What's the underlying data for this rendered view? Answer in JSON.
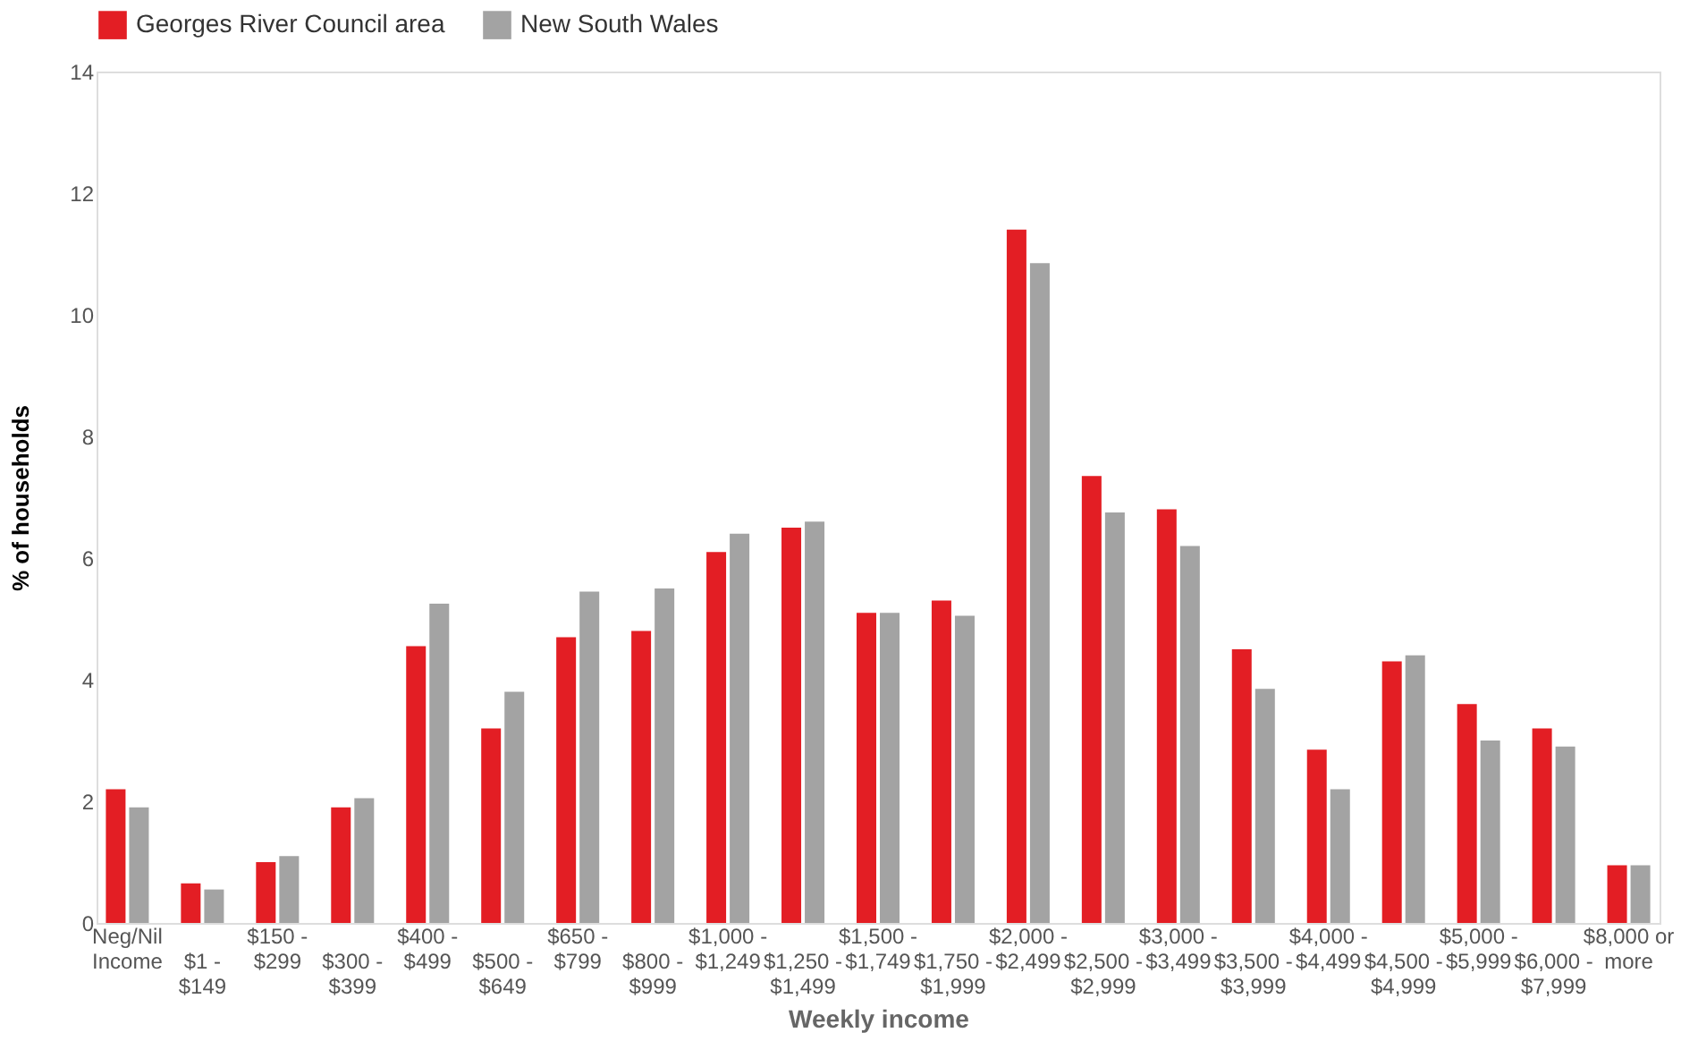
{
  "chart_data": {
    "type": "bar",
    "xlabel": "Weekly income",
    "ylabel": "% of households",
    "categories": [
      "Neg/Nil Income",
      "$1 - $149",
      "$150 - $299",
      "$300 - $399",
      "$400 - $499",
      "$500 - $649",
      "$650 - $799",
      "$800 - $999",
      "$1,000 - $1,249",
      "$1,250 - $1,499",
      "$1,500 - $1,749",
      "$1,750 - $1,999",
      "$2,000 - $2,499",
      "$2,500 - $2,999",
      "$3,000 - $3,499",
      "$3,500 - $3,999",
      "$4,000 - $4,499",
      "$4,500 - $4,999",
      "$5,000 - $5,999",
      "$6,000 - $7,999",
      "$8,000 or more"
    ],
    "series": [
      {
        "name": "Georges River Council area",
        "color": "#e31e24",
        "values": [
          2.2,
          0.65,
          1.0,
          1.9,
          4.55,
          3.2,
          4.7,
          4.8,
          6.1,
          6.5,
          5.1,
          5.3,
          11.4,
          7.35,
          6.8,
          4.5,
          2.85,
          4.3,
          3.6,
          3.2,
          0.95
        ]
      },
      {
        "name": "New South Wales",
        "color": "#a3a3a3",
        "values": [
          1.9,
          0.55,
          1.1,
          2.05,
          5.25,
          3.8,
          5.45,
          5.5,
          6.4,
          6.6,
          5.1,
          5.05,
          10.85,
          6.75,
          6.2,
          3.85,
          2.2,
          4.4,
          3.0,
          2.9,
          0.95
        ]
      }
    ],
    "ylim": [
      0,
      14
    ],
    "yticks": [
      0,
      2,
      4,
      6,
      8,
      10,
      12,
      14
    ],
    "grid": false,
    "legend": "top left"
  }
}
